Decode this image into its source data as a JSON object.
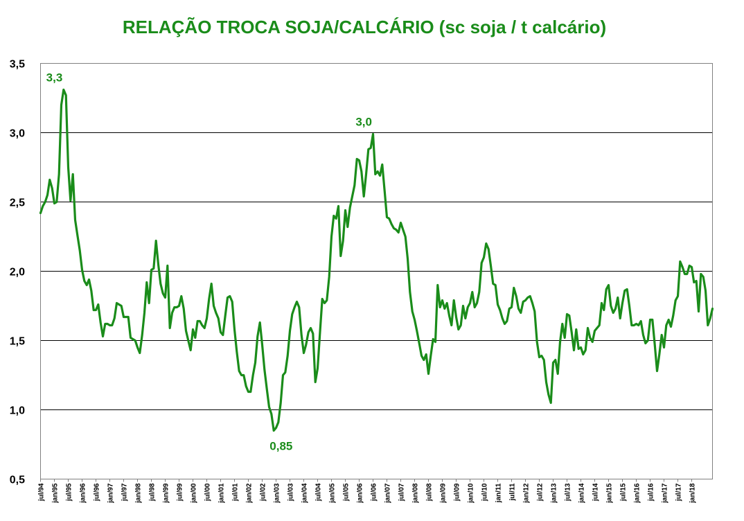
{
  "chart_data": {
    "type": "line",
    "title": "RELAÇÃO TROCA SOJA/CALCÁRIO (sc soja / t calcário)",
    "xlabel": "",
    "ylabel": "",
    "ylim": [
      0.5,
      3.5
    ],
    "y_ticks": [
      "0,5",
      "1,0",
      "1,5",
      "2,0",
      "2,5",
      "3,0",
      "3,5"
    ],
    "y_tick_values": [
      0.5,
      1.0,
      1.5,
      2.0,
      2.5,
      3.0,
      3.5
    ],
    "grid": "horizontal",
    "x_tick_labels": [
      "jul/94",
      "jan/95",
      "jul/95",
      "jan/96",
      "jul/96",
      "jan/97",
      "jul/97",
      "jan/98",
      "jul/98",
      "jan/99",
      "jul/99",
      "jan/00",
      "jul/00",
      "jan/01",
      "jul/01",
      "jan/02",
      "jul/02",
      "jan/03",
      "jul/03",
      "jan/04",
      "jul/04",
      "jan/05",
      "jul/05",
      "jan/06",
      "jul/06",
      "jan/07",
      "jul/07",
      "jan/08",
      "jul/08",
      "jan/09",
      "jul/09",
      "jan/10",
      "jul/10",
      "jan/11",
      "jul/11",
      "jan/12",
      "jul/12",
      "jan/13",
      "jul/13",
      "jan/14",
      "jul/14",
      "jan/15",
      "jul/15",
      "jan/16",
      "jul/16",
      "jan/17",
      "jul/17",
      "jan/18"
    ],
    "series": [
      {
        "color": "#1a8c1a",
        "x_start": "jul/94",
        "frequency": "monthly",
        "values": [
          2.42,
          2.47,
          2.5,
          2.55,
          2.66,
          2.6,
          2.49,
          2.5,
          2.7,
          3.2,
          3.31,
          3.27,
          2.75,
          2.51,
          2.7,
          2.37,
          2.26,
          2.15,
          2.01,
          1.93,
          1.9,
          1.94,
          1.86,
          1.72,
          1.72,
          1.76,
          1.63,
          1.53,
          1.62,
          1.62,
          1.61,
          1.61,
          1.66,
          1.77,
          1.76,
          1.75,
          1.67,
          1.67,
          1.67,
          1.52,
          1.51,
          1.5,
          1.45,
          1.41,
          1.54,
          1.7,
          1.92,
          1.77,
          2.01,
          2.02,
          2.22,
          2.05,
          1.91,
          1.84,
          1.81,
          2.04,
          1.59,
          1.7,
          1.74,
          1.74,
          1.75,
          1.82,
          1.73,
          1.57,
          1.5,
          1.43,
          1.58,
          1.52,
          1.64,
          1.64,
          1.61,
          1.59,
          1.66,
          1.8,
          1.91,
          1.75,
          1.7,
          1.66,
          1.56,
          1.54,
          1.68,
          1.81,
          1.82,
          1.78,
          1.58,
          1.42,
          1.28,
          1.25,
          1.25,
          1.17,
          1.13,
          1.13,
          1.25,
          1.34,
          1.53,
          1.63,
          1.47,
          1.29,
          1.15,
          1.02,
          0.97,
          0.85,
          0.87,
          0.91,
          1.05,
          1.25,
          1.27,
          1.39,
          1.57,
          1.69,
          1.74,
          1.78,
          1.74,
          1.54,
          1.41,
          1.47,
          1.56,
          1.59,
          1.55,
          1.2,
          1.3,
          1.55,
          1.8,
          1.77,
          1.79,
          1.96,
          2.25,
          2.4,
          2.38,
          2.47,
          2.11,
          2.22,
          2.44,
          2.32,
          2.46,
          2.54,
          2.62,
          2.81,
          2.8,
          2.72,
          2.54,
          2.7,
          2.88,
          2.89,
          2.99,
          2.7,
          2.72,
          2.69,
          2.77,
          2.58,
          2.39,
          2.38,
          2.34,
          2.31,
          2.3,
          2.28,
          2.35,
          2.3,
          2.25,
          2.09,
          1.85,
          1.71,
          1.65,
          1.57,
          1.48,
          1.39,
          1.36,
          1.4,
          1.26,
          1.39,
          1.51,
          1.49,
          1.9,
          1.74,
          1.79,
          1.73,
          1.77,
          1.68,
          1.61,
          1.79,
          1.67,
          1.58,
          1.61,
          1.75,
          1.66,
          1.74,
          1.77,
          1.85,
          1.74,
          1.77,
          1.85,
          2.06,
          2.1,
          2.2,
          2.16,
          2.04,
          1.91,
          1.9,
          1.76,
          1.72,
          1.66,
          1.62,
          1.64,
          1.73,
          1.74,
          1.88,
          1.82,
          1.73,
          1.7,
          1.78,
          1.79,
          1.81,
          1.82,
          1.77,
          1.71,
          1.49,
          1.38,
          1.39,
          1.36,
          1.2,
          1.11,
          1.05,
          1.34,
          1.36,
          1.26,
          1.49,
          1.62,
          1.52,
          1.69,
          1.68,
          1.56,
          1.43,
          1.58,
          1.44,
          1.45,
          1.4,
          1.43,
          1.59,
          1.52,
          1.49,
          1.57,
          1.59,
          1.61,
          1.77,
          1.72,
          1.87,
          1.9,
          1.75,
          1.7,
          1.73,
          1.81,
          1.66,
          1.77,
          1.86,
          1.87,
          1.75,
          1.61,
          1.61,
          1.62,
          1.61,
          1.64,
          1.54,
          1.48,
          1.5,
          1.65,
          1.65,
          1.47,
          1.28,
          1.4,
          1.54,
          1.45,
          1.61,
          1.65,
          1.6,
          1.68,
          1.79,
          1.82,
          2.07,
          2.03,
          1.98,
          1.98,
          2.04,
          2.03,
          1.92,
          1.93,
          1.71,
          1.98,
          1.96,
          1.86,
          1.61,
          1.66,
          1.73
        ]
      }
    ],
    "annotations": [
      {
        "label": "3,3",
        "x": "jan/95",
        "y": 3.31
      },
      {
        "label": "0,85",
        "x": "nov/02",
        "y": 0.85
      },
      {
        "label": "3,0",
        "x": "mar/06",
        "y": 2.99
      }
    ],
    "title_color": "#1a8c1a",
    "line_color": "#1a8c1a",
    "annotation_color": "#1a8c1a"
  }
}
